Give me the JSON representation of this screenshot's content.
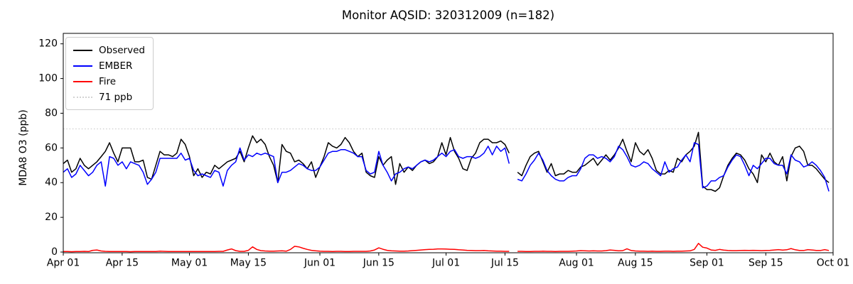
{
  "page": {
    "background": "#ffffff"
  },
  "chart_data": {
    "type": "line",
    "title": "Monitor AQSID: 320312009 (n=182)",
    "xlabel": "",
    "ylabel": "MDA8 O3 (ppb)",
    "x_unit": "daily values, days since Apr 01",
    "n_points": 183,
    "n_valid": 182,
    "missing_day_index": 107,
    "grid": false,
    "legend_position": "upper left",
    "ylim": [
      -1,
      126
    ],
    "y_ticks": [
      0,
      20,
      40,
      60,
      80,
      100,
      120
    ],
    "x_tick_labels": [
      "Apr 01",
      "Apr 15",
      "May 01",
      "May 15",
      "Jun 01",
      "Jun 15",
      "Jul 01",
      "Jul 15",
      "Aug 01",
      "Aug 15",
      "Sep 01",
      "Sep 15",
      "Oct 01"
    ],
    "x_tick_days": [
      0,
      14,
      30,
      44,
      61,
      75,
      91,
      105,
      122,
      136,
      153,
      167,
      183
    ],
    "legend": [
      "Observed",
      "EMBER",
      "Fire",
      "71 ppb"
    ],
    "threshold": {
      "label": "71 ppb",
      "value": 71,
      "color": "#d3d3d3",
      "style": "dotted"
    },
    "axis_color": "#000000",
    "series": [
      {
        "name": "Observed",
        "color": "#000000",
        "values": [
          51,
          53,
          46,
          48,
          54,
          50,
          48,
          50,
          52,
          55,
          58,
          63,
          57,
          52,
          60,
          60,
          60,
          52,
          52,
          53,
          43,
          42,
          50,
          58,
          56,
          56,
          55,
          57,
          65,
          62,
          55,
          44,
          48,
          43,
          46,
          45,
          50,
          48,
          50,
          52,
          53,
          54,
          58,
          52,
          60,
          67,
          63,
          65,
          62,
          55,
          50,
          40,
          62,
          58,
          57,
          52,
          53,
          51,
          48,
          52,
          43,
          49,
          55,
          63,
          61,
          60,
          62,
          66,
          63,
          58,
          55,
          57,
          46,
          44,
          43,
          55,
          50,
          53,
          55,
          39,
          51,
          46,
          49,
          47,
          50,
          52,
          53,
          51,
          52,
          55,
          63,
          56,
          66,
          58,
          54,
          48,
          47,
          54,
          57,
          63,
          65,
          65,
          63,
          63,
          64,
          62,
          57,
          null,
          46,
          44,
          50,
          55,
          57,
          58,
          52,
          46,
          51,
          44,
          45,
          45,
          47,
          46,
          46,
          49,
          50,
          52,
          54,
          50,
          53,
          56,
          53,
          56,
          60,
          65,
          58,
          52,
          63,
          58,
          56,
          59,
          54,
          47,
          45,
          45,
          47,
          46,
          54,
          52,
          56,
          58,
          61,
          69,
          38,
          36,
          36,
          35,
          37,
          44,
          50,
          54,
          57,
          56,
          53,
          48,
          45,
          40,
          56,
          52,
          57,
          52,
          50,
          55,
          41,
          55,
          60,
          61,
          58,
          50,
          50,
          48,
          45,
          42,
          40
        ]
      },
      {
        "name": "EMBER",
        "color": "#0000ff",
        "values": [
          46,
          48,
          43,
          45,
          50,
          47,
          44,
          46,
          50,
          52,
          38,
          55,
          54,
          50,
          52,
          48,
          52,
          51,
          50,
          46,
          39,
          42,
          46,
          54,
          54,
          54,
          54,
          54,
          57,
          53,
          54,
          47,
          44,
          45,
          44,
          43,
          47,
          46,
          38,
          47,
          50,
          52,
          60,
          53,
          56,
          55,
          57,
          56,
          57,
          56,
          55,
          40,
          46,
          46,
          47,
          49,
          51,
          50,
          48,
          47,
          47,
          49,
          53,
          57,
          58,
          58,
          59,
          59,
          58,
          57,
          55,
          55,
          47,
          45,
          46,
          58,
          50,
          46,
          41,
          45,
          46,
          48,
          49,
          48,
          50,
          52,
          53,
          52,
          53,
          55,
          57,
          55,
          58,
          59,
          55,
          54,
          55,
          55,
          54,
          55,
          57,
          61,
          56,
          61,
          58,
          60,
          51,
          null,
          42,
          41,
          45,
          50,
          53,
          57,
          53,
          47,
          44,
          42,
          41,
          41,
          43,
          44,
          44,
          48,
          54,
          56,
          56,
          54,
          55,
          54,
          52,
          55,
          61,
          59,
          55,
          50,
          49,
          50,
          52,
          51,
          48,
          46,
          44,
          52,
          46,
          48,
          49,
          53,
          56,
          52,
          63,
          62,
          37,
          38,
          41,
          41,
          43,
          44,
          49,
          53,
          56,
          55,
          50,
          44,
          50,
          48,
          51,
          54,
          54,
          51,
          50,
          50,
          45,
          56,
          53,
          52,
          49,
          50,
          52,
          50,
          47,
          43,
          35
        ]
      },
      {
        "name": "Fire",
        "color": "#ff0000",
        "values": [
          0.3,
          0.3,
          0.2,
          0.3,
          0.3,
          0.4,
          0.3,
          1.0,
          1.2,
          0.6,
          0.4,
          0.3,
          0.3,
          0.3,
          0.3,
          0.3,
          0.2,
          0.3,
          0.3,
          0.3,
          0.3,
          0.3,
          0.3,
          0.5,
          0.4,
          0.3,
          0.3,
          0.3,
          0.3,
          0.3,
          0.3,
          0.3,
          0.3,
          0.3,
          0.3,
          0.3,
          0.3,
          0.4,
          0.4,
          1.2,
          1.8,
          0.8,
          0.4,
          0.4,
          1.0,
          3.0,
          1.5,
          0.8,
          0.6,
          0.5,
          0.5,
          0.6,
          0.7,
          0.5,
          1.5,
          3.3,
          3.0,
          2.2,
          1.5,
          1.0,
          0.7,
          0.5,
          0.4,
          0.4,
          0.3,
          0.4,
          0.4,
          0.3,
          0.3,
          0.4,
          0.4,
          0.4,
          0.4,
          0.6,
          1.2,
          2.4,
          1.6,
          1.0,
          0.7,
          0.6,
          0.5,
          0.5,
          0.6,
          0.8,
          1.0,
          1.2,
          1.4,
          1.5,
          1.6,
          1.8,
          1.8,
          1.7,
          1.6,
          1.5,
          1.3,
          1.2,
          1.0,
          0.9,
          0.8,
          0.8,
          0.9,
          0.7,
          0.6,
          0.5,
          0.5,
          0.4,
          0.4,
          null,
          0.4,
          0.4,
          0.3,
          0.3,
          0.4,
          0.4,
          0.5,
          0.4,
          0.4,
          0.3,
          0.4,
          0.4,
          0.4,
          0.5,
          0.6,
          0.8,
          0.7,
          0.6,
          0.7,
          0.6,
          0.6,
          0.8,
          1.2,
          1.0,
          0.7,
          0.8,
          1.9,
          0.9,
          0.6,
          0.5,
          0.5,
          0.4,
          0.5,
          0.4,
          0.4,
          0.5,
          0.5,
          0.4,
          0.5,
          0.5,
          0.6,
          0.7,
          1.5,
          5.0,
          2.8,
          2.3,
          1.2,
          1.0,
          1.5,
          1.1,
          0.9,
          0.8,
          0.8,
          0.9,
          1.0,
          0.9,
          1.0,
          0.9,
          0.8,
          0.9,
          1.0,
          1.2,
          1.4,
          1.1,
          1.3,
          2.0,
          1.3,
          0.9,
          0.9,
          1.4,
          1.2,
          0.9,
          0.9,
          1.4,
          0.9
        ]
      }
    ]
  }
}
